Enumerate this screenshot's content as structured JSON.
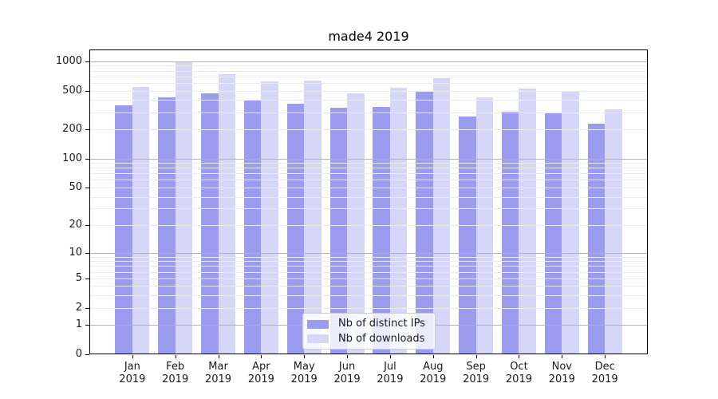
{
  "chart_data": {
    "type": "bar",
    "title": "made4 2019",
    "categories": [
      "Jan",
      "Feb",
      "Mar",
      "Apr",
      "May",
      "Jun",
      "Jul",
      "Aug",
      "Sep",
      "Oct",
      "Nov",
      "Dec"
    ],
    "category_sub_label": "2019",
    "series": [
      {
        "name": "Nb of distinct IPs",
        "color": "#9b9bef",
        "values": [
          350,
          430,
          465,
          400,
          370,
          335,
          340,
          490,
          270,
          305,
          290,
          230
        ]
      },
      {
        "name": "Nb of downloads",
        "color": "#d6d6f9",
        "values": [
          545,
          970,
          730,
          625,
          635,
          470,
          535,
          665,
          430,
          525,
          485,
          320
        ]
      }
    ],
    "yscale": "log10(1+x)",
    "ylim": [
      0,
      1320
    ],
    "y_ticks": [
      0,
      1,
      2,
      5,
      10,
      20,
      50,
      100,
      200,
      500,
      1000
    ],
    "xlabel": "",
    "ylabel": "",
    "grid": {
      "horizontal": true,
      "minor_log_lines": true
    },
    "legend_position": "inside-lower-center"
  },
  "style": {
    "background": "#ffffff",
    "bar_dark": "#9b9bef",
    "bar_light": "#d6d6f9",
    "major_grid": "#b3b3b3",
    "minor_grid": "#ececf0",
    "axis": "#000000",
    "text": "#1a1a1a",
    "legend_bg": "rgba(255,255,255,0.8)",
    "legend_border": "#cccccc"
  }
}
